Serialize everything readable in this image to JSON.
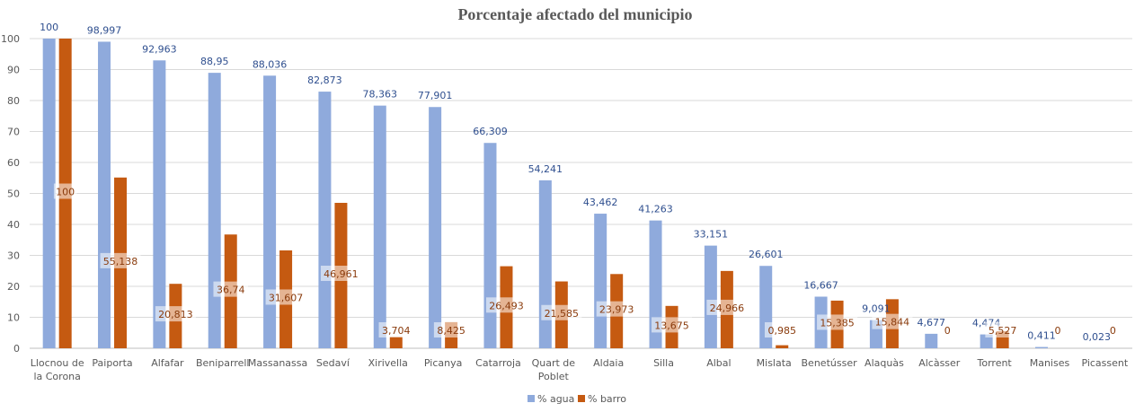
{
  "chart_data": {
    "type": "bar",
    "title": "Porcentaje afectado del municipio",
    "xlabel": "",
    "ylabel": "",
    "ylim": [
      0,
      100
    ],
    "yticks": [
      0,
      10,
      20,
      30,
      40,
      50,
      60,
      70,
      80,
      90,
      100
    ],
    "grid": true,
    "legend_position": "bottom",
    "categories": [
      "Llocnou de la Corona",
      "Paiporta",
      "Alfafar",
      "Beniparrell",
      "Massanassa",
      "Sedaví",
      "Xirivella",
      "Picanya",
      "Catarroja",
      "Quart de Poblet",
      "Aldaia",
      "Silla",
      "Albal",
      "Mislata",
      "Benetússer",
      "Alaquàs",
      "Alcàsser",
      "Torrent",
      "Manises",
      "Picassent"
    ],
    "category_lines": [
      [
        "Llocnou de",
        "la Corona"
      ],
      [
        "Paiporta"
      ],
      [
        "Alfafar"
      ],
      [
        "Beniparrell"
      ],
      [
        "Massanassa"
      ],
      [
        "Sedaví"
      ],
      [
        "Xirivella"
      ],
      [
        "Picanya"
      ],
      [
        "Catarroja"
      ],
      [
        "Quart de",
        "Poblet"
      ],
      [
        "Aldaia"
      ],
      [
        "Silla"
      ],
      [
        "Albal"
      ],
      [
        "Mislata"
      ],
      [
        "Benetússer"
      ],
      [
        "Alaquàs"
      ],
      [
        "Alcàsser"
      ],
      [
        "Torrent"
      ],
      [
        "Manises"
      ],
      [
        "Picassent"
      ]
    ],
    "series": [
      {
        "name": "% agua",
        "color": "#8faadc",
        "label_color": "#2f4f8f",
        "values": [
          100,
          98.997,
          92.963,
          88.95,
          88.036,
          82.873,
          78.363,
          77.901,
          66.309,
          54.241,
          43.462,
          41.263,
          33.151,
          26.601,
          16.667,
          9.091,
          4.677,
          4.474,
          0.411,
          0.023
        ],
        "labels": [
          "100",
          "98,997",
          "92,963",
          "88,95",
          "88,036",
          "82,873",
          "78,363",
          "77,901",
          "66,309",
          "54,241",
          "43,462",
          "41,263",
          "33,151",
          "26,601",
          "16,667",
          "9,091",
          "4,677",
          "4,474",
          "0,411",
          "0,023"
        ]
      },
      {
        "name": "% barro",
        "color": "#c55a11",
        "label_color": "#8a3b0c",
        "values": [
          100,
          55.138,
          20.813,
          36.74,
          31.607,
          46.961,
          3.704,
          8.425,
          26.493,
          21.585,
          23.973,
          13.675,
          24.966,
          0.985,
          15.385,
          15.844,
          0,
          5.527,
          0,
          0
        ],
        "labels": [
          "100",
          "55,138",
          "20,813",
          "36,74",
          "31,607",
          "46,961",
          "3,704",
          "8,425",
          "26,493",
          "21,585",
          "23,973",
          "13,675",
          "24,966",
          "0,985",
          "15,385",
          "15,844",
          "0",
          "5,527",
          "0",
          "0"
        ]
      }
    ]
  }
}
